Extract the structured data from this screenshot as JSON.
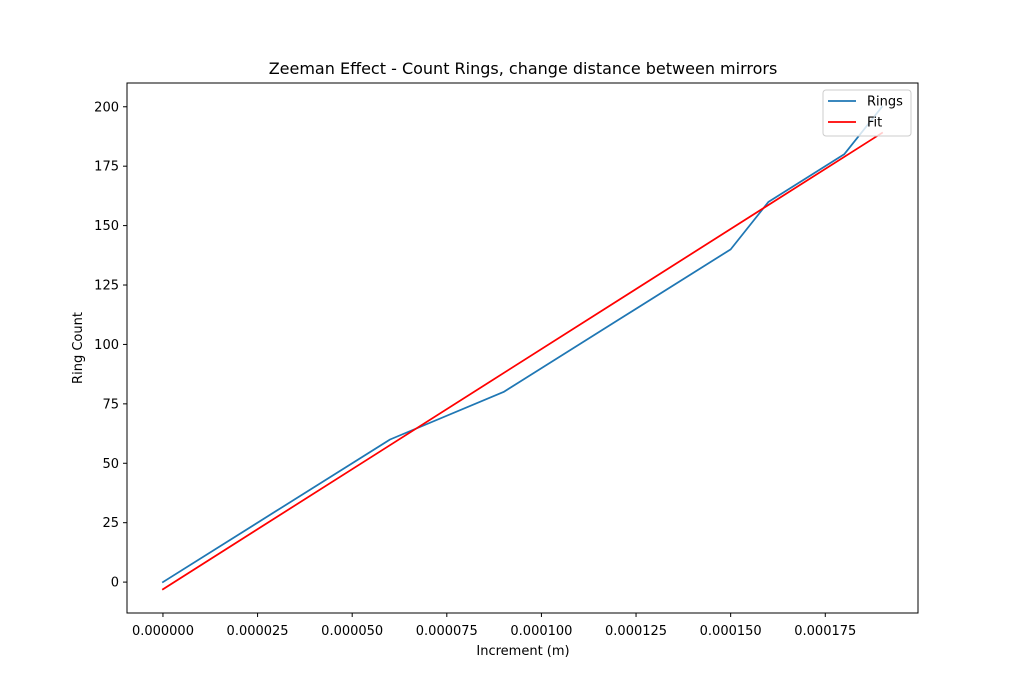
{
  "chart_data": {
    "type": "line",
    "title": "Zeeman Effect - Count Rings, change distance between mirrors",
    "xlabel": "Increment (m)",
    "ylabel": "Ring Count",
    "xlim": [
      -9.5e-06,
      0.0001995
    ],
    "ylim": [
      -13,
      210
    ],
    "xticks": [
      0.0,
      2.5e-05,
      5e-05,
      7.5e-05,
      0.0001,
      0.000125,
      0.00015,
      0.000175
    ],
    "xtick_labels": [
      "0.000000",
      "0.000025",
      "0.000050",
      "0.000075",
      "0.000100",
      "0.000125",
      "0.000150",
      "0.000175"
    ],
    "yticks": [
      0,
      25,
      50,
      75,
      100,
      125,
      150,
      175,
      200
    ],
    "ytick_labels": [
      "0",
      "25",
      "50",
      "75",
      "100",
      "125",
      "150",
      "175",
      "200"
    ],
    "grid": false,
    "legend_position": "upper right",
    "series": [
      {
        "name": "Rings",
        "color": "#1f77b4",
        "x": [
          0.0,
          3e-05,
          6e-05,
          9e-05,
          0.00012,
          0.00015,
          0.00016,
          0.00018,
          0.00019
        ],
        "y": [
          0,
          30,
          60,
          80,
          110,
          140,
          160,
          180,
          200
        ]
      },
      {
        "name": "Fit",
        "color": "#ff0000",
        "x": [
          0.0,
          0.00019
        ],
        "y": [
          -3,
          189
        ]
      }
    ]
  }
}
